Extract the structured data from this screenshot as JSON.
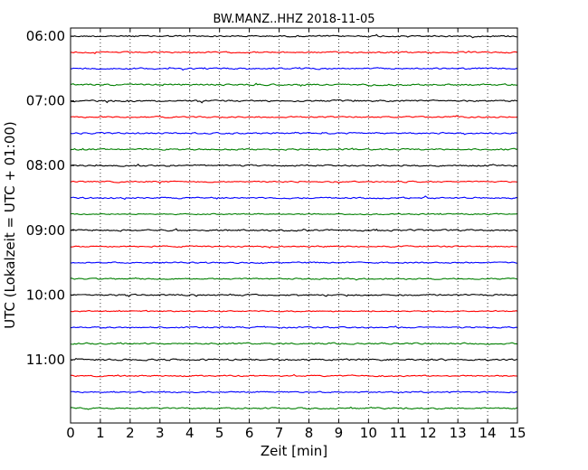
{
  "chart_data": {
    "type": "line",
    "title": "BW.MANZ..HHZ 2018-11-05",
    "xlabel": "Zeit  [min]",
    "ylabel": "UTC (Lokalzeit = UTC + 01:00)",
    "xlim": [
      0,
      15
    ],
    "x_ticks": [
      "0",
      "1",
      "2",
      "3",
      "4",
      "5",
      "6",
      "7",
      "8",
      "9",
      "10",
      "11",
      "12",
      "13",
      "14",
      "15"
    ],
    "y_ticks": [
      "06:00",
      "07:00",
      "08:00",
      "09:00",
      "10:00",
      "11:00"
    ],
    "grid": {
      "x": true,
      "style": "dotted"
    },
    "trace_colors": [
      "#000000",
      "#ff0000",
      "#0000ff",
      "#007f00"
    ],
    "traces_per_hour": 4,
    "minutes_per_trace": 15,
    "series": [
      {
        "start": "06:00",
        "color": "#000000",
        "amp": 0.9
      },
      {
        "start": "06:15",
        "color": "#ff0000",
        "amp": 0.8
      },
      {
        "start": "06:30",
        "color": "#0000ff",
        "amp": 0.9
      },
      {
        "start": "06:45",
        "color": "#007f00",
        "amp": 1.0
      },
      {
        "start": "07:00",
        "color": "#000000",
        "amp": 1.0
      },
      {
        "start": "07:15",
        "color": "#ff0000",
        "amp": 0.8
      },
      {
        "start": "07:30",
        "color": "#0000ff",
        "amp": 0.9
      },
      {
        "start": "07:45",
        "color": "#007f00",
        "amp": 0.9
      },
      {
        "start": "08:00",
        "color": "#000000",
        "amp": 0.9
      },
      {
        "start": "08:15",
        "color": "#ff0000",
        "amp": 0.8
      },
      {
        "start": "08:30",
        "color": "#0000ff",
        "amp": 0.9
      },
      {
        "start": "08:45",
        "color": "#007f00",
        "amp": 0.7
      },
      {
        "start": "09:00",
        "color": "#000000",
        "amp": 1.0
      },
      {
        "start": "09:15",
        "color": "#ff0000",
        "amp": 0.8
      },
      {
        "start": "09:30",
        "color": "#0000ff",
        "amp": 0.8
      },
      {
        "start": "09:45",
        "color": "#007f00",
        "amp": 0.8
      },
      {
        "start": "10:00",
        "color": "#000000",
        "amp": 0.9
      },
      {
        "start": "10:15",
        "color": "#ff0000",
        "amp": 0.7
      },
      {
        "start": "10:30",
        "color": "#0000ff",
        "amp": 0.8
      },
      {
        "start": "10:45",
        "color": "#007f00",
        "amp": 0.9
      },
      {
        "start": "11:00",
        "color": "#000000",
        "amp": 1.0
      },
      {
        "start": "11:15",
        "color": "#ff0000",
        "amp": 0.8
      },
      {
        "start": "11:30",
        "color": "#0000ff",
        "amp": 0.8
      },
      {
        "start": "11:45",
        "color": "#007f00",
        "amp": 0.9
      }
    ]
  }
}
